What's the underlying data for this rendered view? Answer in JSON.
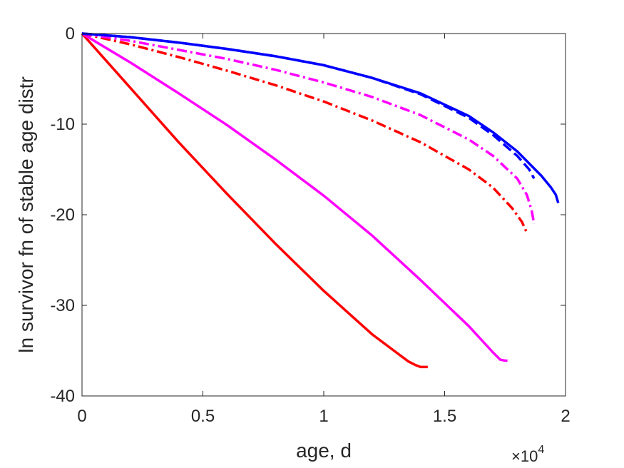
{
  "chart_data": {
    "type": "line",
    "xlabel": "age, d",
    "ylabel": "ln survivor fn of stable age distr",
    "x_multiplier_label": {
      "base": "×10",
      "exponent": "4"
    },
    "xlim": [
      0,
      2
    ],
    "ylim": [
      -40,
      0
    ],
    "x_ticks": [
      0,
      0.5,
      1,
      1.5,
      2
    ],
    "x_tick_labels": [
      "0",
      "0.5",
      "1",
      "1.5",
      "2"
    ],
    "y_ticks": [
      0,
      -10,
      -20,
      -30,
      -40
    ],
    "y_tick_labels": [
      "0",
      "-10",
      "-20",
      "-30",
      "-40"
    ],
    "grid": false,
    "box": true,
    "series": [
      {
        "color": "#ff0000",
        "style": "solid",
        "x": [
          0,
          0.2,
          0.4,
          0.6,
          0.8,
          1.0,
          1.2,
          1.3,
          1.35,
          1.38,
          1.4,
          1.42,
          1.43
        ],
        "y": [
          0,
          -6,
          -12,
          -17.7,
          -23.2,
          -28.4,
          -33.2,
          -35.2,
          -36.2,
          -36.6,
          -36.8,
          -36.8,
          -36.8
        ]
      },
      {
        "color": "#ff00ff",
        "style": "solid",
        "x": [
          0,
          0.2,
          0.4,
          0.6,
          0.8,
          1.0,
          1.2,
          1.4,
          1.6,
          1.7,
          1.73,
          1.75,
          1.76
        ],
        "y": [
          0,
          -3.2,
          -6.6,
          -10.1,
          -13.9,
          -17.9,
          -22.3,
          -27.2,
          -32.3,
          -35.2,
          -36.0,
          -36.1,
          -36.1
        ]
      },
      {
        "color": "#ff0000",
        "style": "dashdot",
        "x": [
          0,
          0.2,
          0.4,
          0.6,
          0.8,
          1.0,
          1.2,
          1.4,
          1.6,
          1.7,
          1.78,
          1.82,
          1.84
        ],
        "y": [
          0,
          -1.2,
          -2.6,
          -4.1,
          -5.7,
          -7.5,
          -9.6,
          -12.0,
          -15.0,
          -17.0,
          -19.3,
          -20.8,
          -22.0
        ]
      },
      {
        "color": "#ff00ff",
        "style": "dashdot",
        "x": [
          0,
          0.2,
          0.4,
          0.6,
          0.8,
          1.0,
          1.2,
          1.4,
          1.6,
          1.7,
          1.8,
          1.84,
          1.86,
          1.87
        ],
        "y": [
          0,
          -0.8,
          -1.8,
          -2.8,
          -4.0,
          -5.4,
          -7.0,
          -9.0,
          -11.7,
          -13.5,
          -16.0,
          -17.8,
          -19.5,
          -21.0
        ]
      },
      {
        "color": "#0000ff",
        "style": "dashed",
        "x": [
          0,
          0.2,
          0.4,
          0.6,
          0.8,
          1.0,
          1.2,
          1.4,
          1.6,
          1.7,
          1.8,
          1.85,
          1.87
        ],
        "y": [
          0,
          -0.4,
          -1.0,
          -1.7,
          -2.5,
          -3.5,
          -4.9,
          -6.7,
          -9.3,
          -11.2,
          -13.5,
          -15.0,
          -16.0
        ]
      },
      {
        "color": "#0000ff",
        "style": "solid",
        "x": [
          0,
          0.2,
          0.4,
          0.6,
          0.8,
          1.0,
          1.2,
          1.4,
          1.6,
          1.7,
          1.8,
          1.9,
          1.94,
          1.96,
          1.97
        ],
        "y": [
          0,
          -0.4,
          -1.0,
          -1.7,
          -2.5,
          -3.5,
          -4.9,
          -6.6,
          -9.1,
          -10.9,
          -13.0,
          -15.7,
          -17.0,
          -17.8,
          -18.7
        ]
      }
    ]
  }
}
